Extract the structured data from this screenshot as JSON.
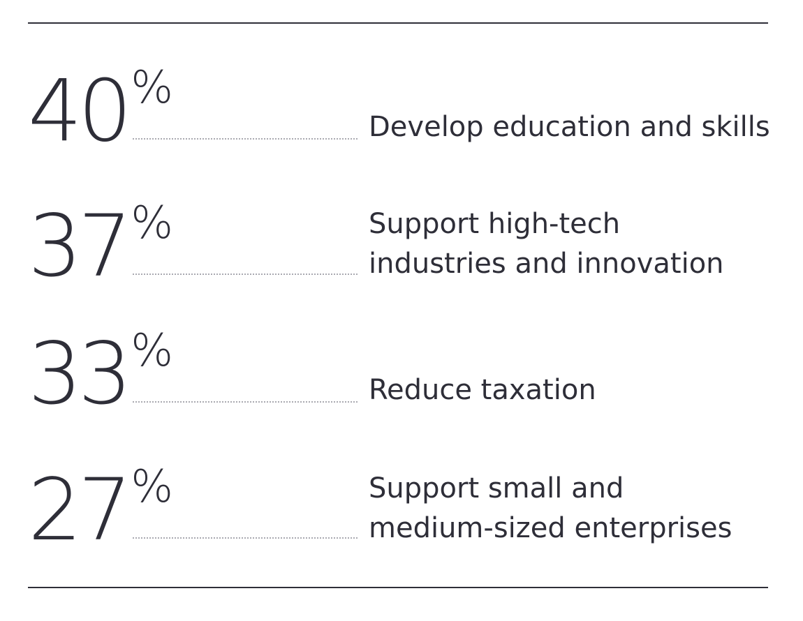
{
  "chart_data": {
    "type": "table",
    "unit": "%",
    "rows": [
      {
        "value": 40,
        "display": "40",
        "label": "Develop education and skills"
      },
      {
        "value": 37,
        "display": "37",
        "label": "Support high-tech industries and innovation"
      },
      {
        "value": 33,
        "display": "33",
        "label": "Reduce taxation"
      },
      {
        "value": 27,
        "display": "27",
        "label": "Support small and medium-sized enterprises"
      }
    ]
  },
  "colors": {
    "text": "#2e2e38",
    "leader": "#a9a9b0",
    "background": "#ffffff"
  }
}
